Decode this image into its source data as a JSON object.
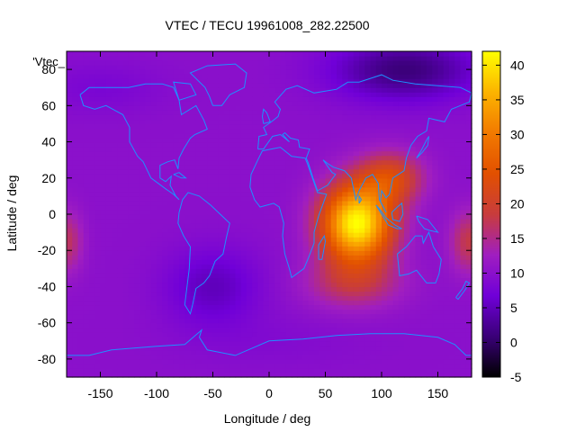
{
  "chart_data": {
    "type": "heatmap",
    "title": "VTEC / TECU 19961008_282.22500",
    "xlabel": "Longitude / deg",
    "ylabel": "Latitude / deg",
    "legend_label": "'Vtec_",
    "xlim": [
      -180,
      180
    ],
    "ylim": [
      -90,
      90
    ],
    "x_ticks": [
      -150,
      -100,
      -50,
      0,
      50,
      100,
      150
    ],
    "y_ticks": [
      -80,
      -60,
      -40,
      -20,
      0,
      20,
      40,
      60,
      80
    ],
    "colorbar": {
      "range": [
        -5,
        42
      ],
      "ticks": [
        -5,
        0,
        5,
        10,
        15,
        20,
        25,
        30,
        35,
        40
      ],
      "palette": [
        "#000000",
        "#3a0078",
        "#7000d8",
        "#a01ec0",
        "#c83c3c",
        "#e25000",
        "#f27a00",
        "#fcb400",
        "#ffff00"
      ]
    },
    "background_level": 10,
    "features": [
      {
        "lon": 78,
        "lat": -5,
        "peak": 42,
        "sigma_lon": 22,
        "sigma_lat": 15
      },
      {
        "lon": 108,
        "lat": 20,
        "peak": 22,
        "sigma_lon": 20,
        "sigma_lat": 10
      },
      {
        "lon": 75,
        "lat": -38,
        "peak": 17,
        "sigma_lon": 30,
        "sigma_lat": 10
      },
      {
        "lon": 178,
        "lat": -15,
        "peak": 18,
        "sigma_lon": 12,
        "sigma_lat": 12
      },
      {
        "lon": -180,
        "lat": -15,
        "peak": 17,
        "sigma_lon": 10,
        "sigma_lat": 12
      },
      {
        "lon": 120,
        "lat": 80,
        "peak": 1,
        "sigma_lon": 45,
        "sigma_lat": 12
      },
      {
        "lon": -50,
        "lat": -40,
        "peak": 5,
        "sigma_lon": 30,
        "sigma_lat": 15
      },
      {
        "lon": -150,
        "lat": 70,
        "peak": 8,
        "sigma_lon": 40,
        "sigma_lat": 10
      },
      {
        "lon": 0,
        "lat": -70,
        "peak": 9,
        "sigma_lon": 60,
        "sigma_lat": 10
      }
    ],
    "coastline_color": "#1e90ff"
  }
}
